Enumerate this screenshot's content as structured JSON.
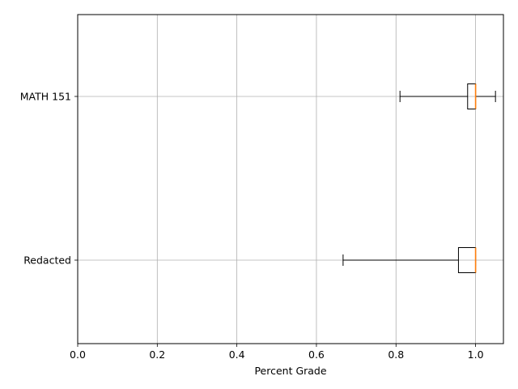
{
  "chart_data": {
    "type": "boxplot",
    "orientation": "horizontal",
    "xlabel": "Percent Grade",
    "ylabel": "",
    "xlim": [
      0.0,
      1.07
    ],
    "xticks": [
      0.0,
      0.2,
      0.4,
      0.6,
      0.8,
      1.0
    ],
    "xtick_labels": [
      "0.0",
      "0.2",
      "0.4",
      "0.6",
      "0.8",
      "1.0"
    ],
    "grid": true,
    "categories": [
      "Redacted",
      "MATH 151"
    ],
    "series": [
      {
        "whisker_low": 0.667,
        "q1": 0.957,
        "median": 1.0,
        "q3": 1.0,
        "whisker_high": 1.0
      },
      {
        "whisker_low": 0.81,
        "q1": 0.98,
        "median": 1.0,
        "q3": 1.0,
        "whisker_high": 1.05
      }
    ],
    "colors": {
      "box": "#000000",
      "median": "#ff7f0e",
      "grid": "#b0b0b0"
    }
  }
}
